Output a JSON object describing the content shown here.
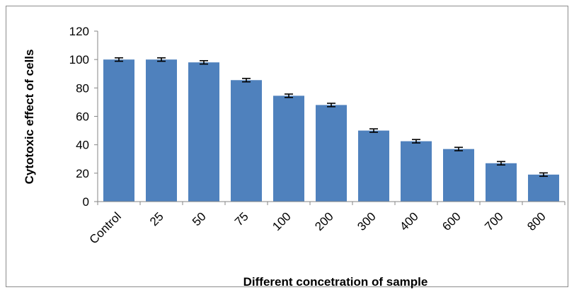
{
  "chart_data": {
    "type": "bar",
    "categories": [
      "Control",
      "25",
      "50",
      "75",
      "100",
      "200",
      "300",
      "400",
      "600",
      "700",
      "800"
    ],
    "values": [
      100,
      100,
      98,
      85.5,
      74.5,
      68,
      50,
      42.5,
      37,
      27,
      19
    ],
    "errors": [
      1.2,
      1.2,
      1.2,
      1.2,
      1.2,
      1.2,
      1.2,
      1.2,
      1.2,
      1.2,
      1.2
    ],
    "title": "",
    "xlabel": "Different  concetration of sample",
    "ylabel": "Cytotoxic effect of cells",
    "ylim": [
      0,
      120
    ],
    "yticks": [
      "0",
      "20",
      "40",
      "60",
      "80",
      "100",
      "120"
    ],
    "grid": false,
    "legend": "none",
    "bar_color": "#4f81bd",
    "error_bar_color": "#000000"
  }
}
